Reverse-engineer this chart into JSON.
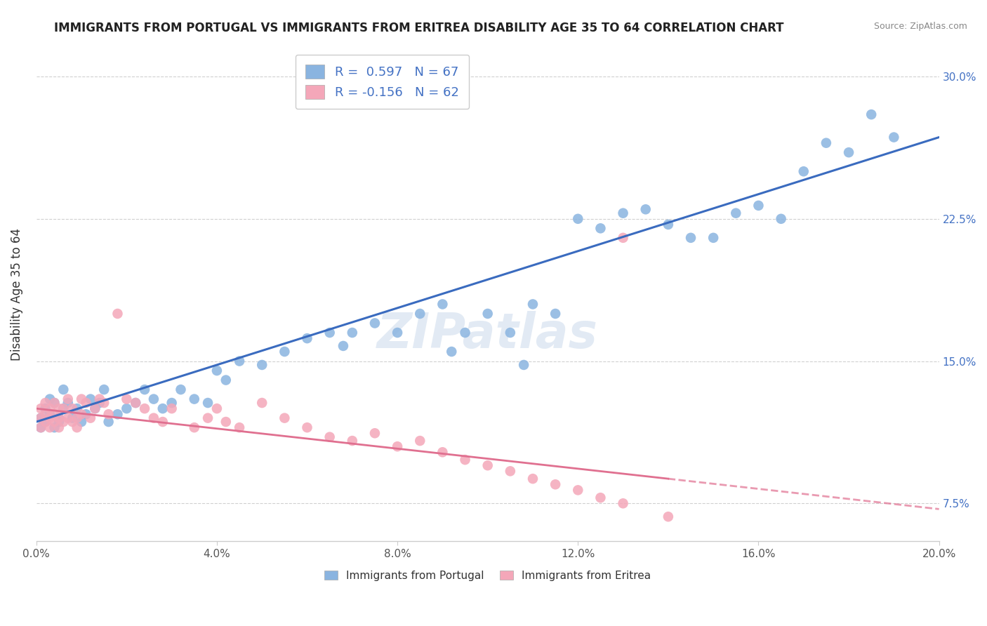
{
  "title": "IMMIGRANTS FROM PORTUGAL VS IMMIGRANTS FROM ERITREA DISABILITY AGE 35 TO 64 CORRELATION CHART",
  "source": "Source: ZipAtlas.com",
  "ylabel": "Disability Age 35 to 64",
  "legend_label1": "Immigrants from Portugal",
  "legend_label2": "Immigrants from Eritrea",
  "R1": 0.597,
  "N1": 67,
  "R2": -0.156,
  "N2": 62,
  "xlim": [
    0.0,
    0.2
  ],
  "ylim": [
    0.055,
    0.315
  ],
  "xticks": [
    0.0,
    0.04,
    0.08,
    0.12,
    0.16,
    0.2
  ],
  "yticks": [
    0.075,
    0.15,
    0.225,
    0.3
  ],
  "xticklabels": [
    "0.0%",
    "4.0%",
    "8.0%",
    "12.0%",
    "16.0%",
    "20.0%"
  ],
  "yticklabels": [
    "7.5%",
    "15.0%",
    "22.5%",
    "30.0%"
  ],
  "color_portugal": "#8ab4e0",
  "color_eritrea": "#f4a7b9",
  "trendline_portugal": "#3a6bbf",
  "trendline_eritrea": "#e07090",
  "background": "#ffffff",
  "watermark": "ZIPatlas",
  "portugal_x": [
    0.001,
    0.001,
    0.002,
    0.002,
    0.003,
    0.003,
    0.004,
    0.004,
    0.005,
    0.005,
    0.006,
    0.006,
    0.007,
    0.008,
    0.009,
    0.01,
    0.011,
    0.012,
    0.013,
    0.014,
    0.015,
    0.016,
    0.018,
    0.02,
    0.022,
    0.024,
    0.026,
    0.028,
    0.03,
    0.032,
    0.035,
    0.038,
    0.04,
    0.042,
    0.045,
    0.05,
    0.055,
    0.06,
    0.065,
    0.068,
    0.07,
    0.075,
    0.08,
    0.085,
    0.09,
    0.092,
    0.095,
    0.1,
    0.105,
    0.108,
    0.11,
    0.115,
    0.12,
    0.125,
    0.13,
    0.135,
    0.14,
    0.145,
    0.15,
    0.155,
    0.16,
    0.165,
    0.17,
    0.175,
    0.18,
    0.185,
    0.19
  ],
  "portugal_y": [
    0.12,
    0.115,
    0.118,
    0.125,
    0.122,
    0.13,
    0.115,
    0.128,
    0.12,
    0.118,
    0.125,
    0.135,
    0.128,
    0.12,
    0.125,
    0.118,
    0.122,
    0.13,
    0.125,
    0.128,
    0.135,
    0.118,
    0.122,
    0.125,
    0.128,
    0.135,
    0.13,
    0.125,
    0.128,
    0.135,
    0.13,
    0.128,
    0.145,
    0.14,
    0.15,
    0.148,
    0.155,
    0.162,
    0.165,
    0.158,
    0.165,
    0.17,
    0.165,
    0.175,
    0.18,
    0.155,
    0.165,
    0.175,
    0.165,
    0.148,
    0.18,
    0.175,
    0.225,
    0.22,
    0.228,
    0.23,
    0.222,
    0.215,
    0.215,
    0.228,
    0.232,
    0.225,
    0.25,
    0.265,
    0.26,
    0.28,
    0.268
  ],
  "eritrea_x": [
    0.001,
    0.001,
    0.001,
    0.002,
    0.002,
    0.002,
    0.003,
    0.003,
    0.003,
    0.004,
    0.004,
    0.004,
    0.005,
    0.005,
    0.005,
    0.006,
    0.006,
    0.007,
    0.007,
    0.008,
    0.008,
    0.009,
    0.009,
    0.01,
    0.01,
    0.011,
    0.012,
    0.013,
    0.014,
    0.015,
    0.016,
    0.018,
    0.02,
    0.022,
    0.024,
    0.026,
    0.028,
    0.03,
    0.035,
    0.038,
    0.04,
    0.042,
    0.045,
    0.05,
    0.055,
    0.06,
    0.065,
    0.07,
    0.075,
    0.08,
    0.085,
    0.09,
    0.095,
    0.1,
    0.105,
    0.11,
    0.115,
    0.12,
    0.125,
    0.13,
    0.14,
    0.13
  ],
  "eritrea_y": [
    0.12,
    0.115,
    0.125,
    0.118,
    0.122,
    0.128,
    0.115,
    0.12,
    0.125,
    0.118,
    0.122,
    0.128,
    0.115,
    0.12,
    0.125,
    0.118,
    0.125,
    0.12,
    0.13,
    0.118,
    0.125,
    0.12,
    0.115,
    0.122,
    0.13,
    0.128,
    0.12,
    0.125,
    0.13,
    0.128,
    0.122,
    0.175,
    0.13,
    0.128,
    0.125,
    0.12,
    0.118,
    0.125,
    0.115,
    0.12,
    0.125,
    0.118,
    0.115,
    0.128,
    0.12,
    0.115,
    0.11,
    0.108,
    0.112,
    0.105,
    0.108,
    0.102,
    0.098,
    0.095,
    0.092,
    0.088,
    0.085,
    0.082,
    0.078,
    0.075,
    0.068,
    0.215
  ],
  "trend_portugal_x0": 0.0,
  "trend_portugal_x1": 0.2,
  "trend_portugal_y0": 0.118,
  "trend_portugal_y1": 0.268,
  "trend_eritrea_x0": 0.0,
  "trend_eritrea_x1": 0.14,
  "trend_eritrea_y0": 0.125,
  "trend_eritrea_y1": 0.088,
  "trend_eritrea_dash_x0": 0.14,
  "trend_eritrea_dash_x1": 0.2,
  "trend_eritrea_dash_y0": 0.088,
  "trend_eritrea_dash_y1": 0.072
}
